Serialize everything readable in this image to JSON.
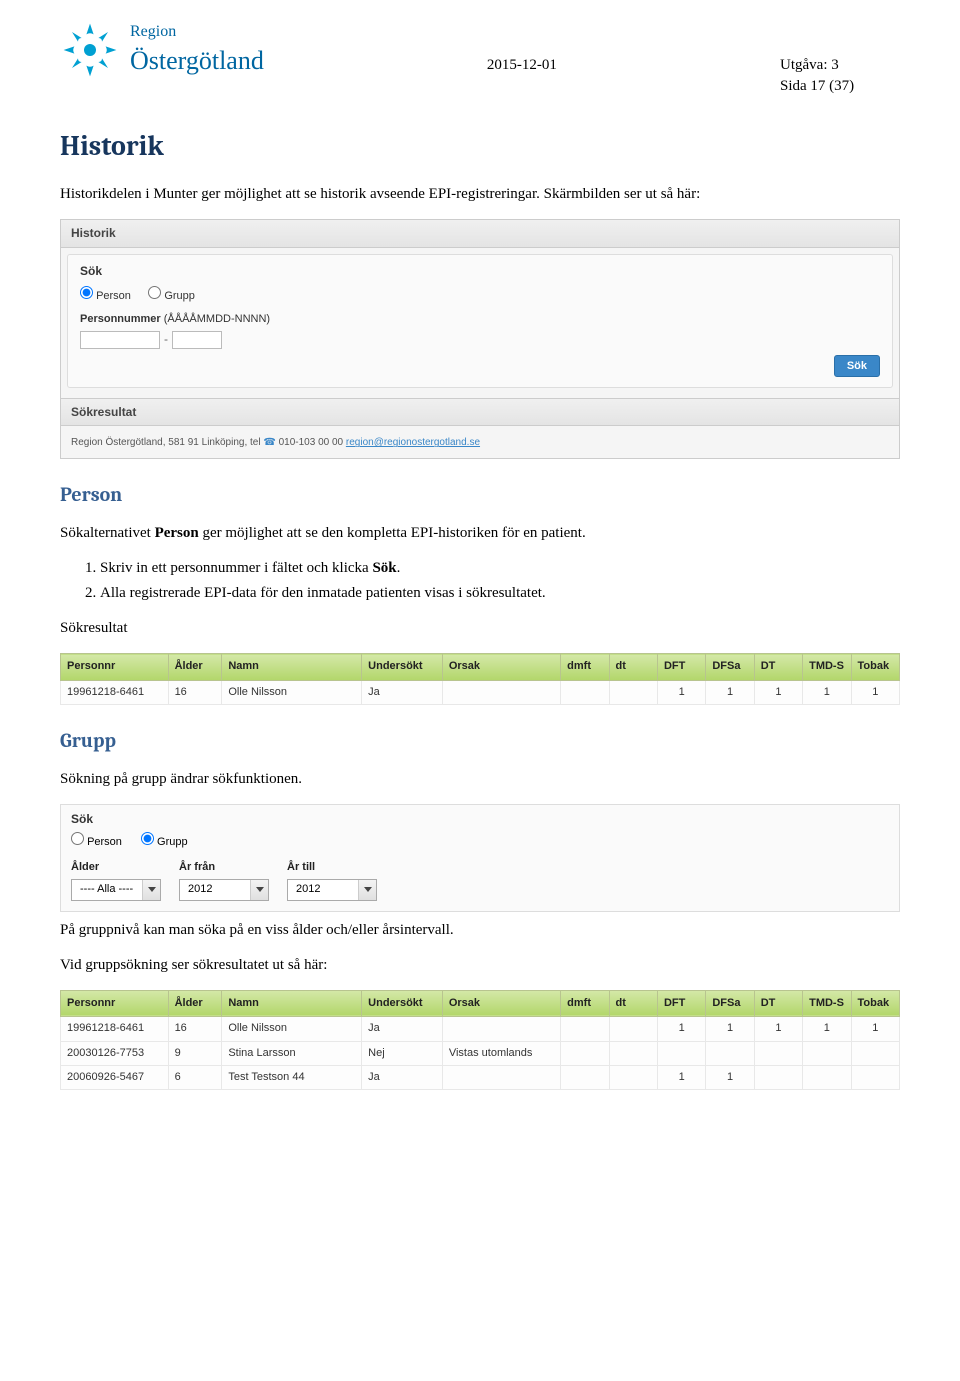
{
  "header": {
    "logo_line1": "Region",
    "logo_line2": "Östergötland",
    "date": "2015-12-01",
    "edition": "Utgåva: 3",
    "page": "Sida 17 (37)"
  },
  "h1": "Historik",
  "intro1": "Historikdelen i Munter ger möjlighet att se historik avseende EPI-registreringar. Skärmbilden ser ut så här:",
  "screenshot1": {
    "title": "Historik",
    "sok_label": "Sök",
    "radio_person": "Person",
    "radio_grupp": "Grupp",
    "pnr_label_bold": "Personnummer",
    "pnr_label_rest": " (ÅÅÅÅMMDD-NNNN)",
    "sep": "-",
    "sok_btn": "Sök",
    "result_title": "Sökresultat",
    "footer_text": "Region Östergötland, 581 91 Linköping, tel ",
    "footer_phone": "010-103 00 00",
    "footer_link": "region@regionostergotland.se"
  },
  "h2_person": "Person",
  "person_p1_parts": {
    "a": "Sökalternativet ",
    "b": "Person",
    "c": " ger möjlighet att se den kompletta EPI-historiken för en patient."
  },
  "ol": [
    {
      "a": "Skriv in ett personnummer i fältet och klicka ",
      "b": "Sök",
      "c": "."
    },
    {
      "a": "Alla registrerade EPI-data för den inmatade patienten visas i sökresultatet.",
      "b": "",
      "c": ""
    }
  ],
  "sokresultat_label": "Sökresultat",
  "table_cols": [
    "Personnr",
    "Ålder",
    "Namn",
    "Undersökt",
    "Orsak",
    "dmft",
    "dt",
    "DFT",
    "DFSa",
    "DT",
    "TMD-S",
    "Tobak"
  ],
  "table1_rows": [
    [
      "19961218-6461",
      "16",
      "Olle Nilsson",
      "Ja",
      "",
      "",
      "",
      "1",
      "1",
      "1",
      "1",
      "1"
    ]
  ],
  "h2_grupp": "Grupp",
  "grupp_p1": "Sökning på grupp ändrar sökfunktionen.",
  "screenshot2": {
    "sok_label": "Sök",
    "radio_person": "Person",
    "radio_grupp": "Grupp",
    "alder_label": "Ålder",
    "alder_value": "---- Alla ----",
    "arfran_label": "År från",
    "arfran_value": "2012",
    "artill_label": "År till",
    "artill_value": "2012"
  },
  "grupp_p2": "På gruppnivå kan man söka på en viss ålder och/eller årsintervall.",
  "grupp_p3": "Vid gruppsökning ser sökresultatet ut så här:",
  "table2_rows": [
    [
      "19961218-6461",
      "16",
      "Olle Nilsson",
      "Ja",
      "",
      "",
      "",
      "1",
      "1",
      "1",
      "1",
      "1"
    ],
    [
      "20030126-7753",
      "9",
      "Stina Larsson",
      "Nej",
      "Vistas utomlands",
      "",
      "",
      "",
      "",
      "",
      "",
      ""
    ],
    [
      "20060926-5467",
      "6",
      "Test Testson 44",
      "Ja",
      "",
      "",
      "",
      "1",
      "1",
      "",
      "",
      ""
    ]
  ],
  "colors": {
    "heading1": "#17365d",
    "heading2": "#365f91",
    "table_header_bg_from": "#d4e8a8",
    "table_header_bg_to": "#b2d66a",
    "logo": "#0066a1",
    "sok_btn": "#3a87c8"
  }
}
